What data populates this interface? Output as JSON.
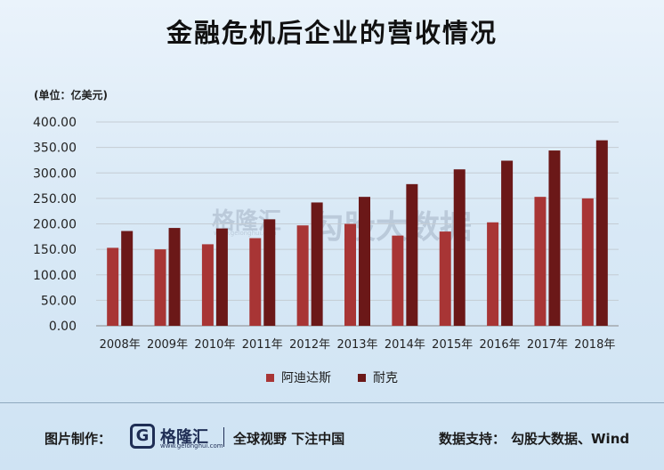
{
  "title": "金融危机后企业的营收情况",
  "unit_label": "(单位：亿美元)",
  "watermark": {
    "brand": "格隆汇",
    "url": "www.gelonghui.com",
    "partner": "勾股大数据"
  },
  "footer": {
    "made_by_label": "图片制作：",
    "logo_text": "格隆汇",
    "logo_sub": "www.gelonghui.com",
    "slogan": "全球视野 下注中国",
    "source_label": "数据支持：",
    "source_value": "勾股大数据、Wind"
  },
  "chart_data": {
    "type": "bar",
    "categories": [
      "2008年",
      "2009年",
      "2010年",
      "2011年",
      "2012年",
      "2013年",
      "2014年",
      "2015年",
      "2016年",
      "2017年",
      "2018年"
    ],
    "series": [
      {
        "name": "阿迪达斯",
        "color": "#a83535",
        "values": [
          153,
          150,
          160,
          172,
          197,
          200,
          177,
          185,
          203,
          253,
          250
        ]
      },
      {
        "name": "耐克",
        "color": "#6b1818",
        "values": [
          186,
          192,
          191,
          209,
          242,
          253,
          278,
          307,
          324,
          344,
          364
        ]
      }
    ],
    "ylim": [
      0,
      400
    ],
    "yticks": [
      "0.00",
      "50.00",
      "100.00",
      "150.00",
      "200.00",
      "250.00",
      "300.00",
      "350.00",
      "400.00"
    ],
    "grid": true,
    "legend_position": "bottom",
    "xlabel": "",
    "ylabel": ""
  }
}
